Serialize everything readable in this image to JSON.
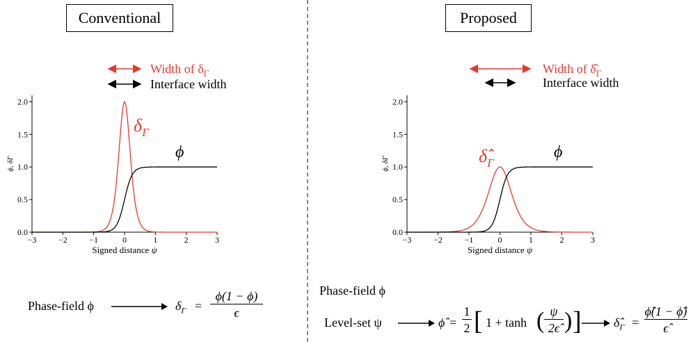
{
  "panels": {
    "conventional": {
      "title": "Conventional",
      "legend": {
        "red_label": "Width of δ",
        "red_sub": "Γ",
        "black_label": "Interface width"
      },
      "delta_label": {
        "main": "δ",
        "sub": "Γ"
      },
      "phi_label": "ϕ",
      "xlabel": "Signed distance",
      "xlabel_var": "ψ",
      "ylabel": "ϕ, δΓ",
      "formula": {
        "lhs": "Phase-field ϕ",
        "result_main": "δ",
        "result_sub": "Γ",
        "numerator": "ϕ(1 − ϕ)",
        "denominator": "ϵ"
      }
    },
    "proposed": {
      "title": "Proposed",
      "legend": {
        "red_label": "Width of δ̂",
        "red_sub": "Γ",
        "black_label": "Interface width"
      },
      "delta_label": {
        "main": "δ̂",
        "sub": "Γ"
      },
      "phi_label": "ϕ",
      "xlabel": "Signed distance",
      "xlabel_var": "ψ",
      "ylabel": "ϕ, δΓ",
      "formula_line1": "Phase-field ϕ",
      "formula_line2": {
        "lhs": "Level-set ψ",
        "phihat": "ϕ̂",
        "half_num": "1",
        "half_den": "2",
        "bracket_content": "1 + tanh",
        "frac_num": "ψ",
        "frac_den": "2ϵ̂",
        "result_main": "δ̂",
        "result_sub": "Γ",
        "numerator": "ϕ̂(1 − ϕ̂)",
        "denominator": "ϵ̂"
      }
    }
  },
  "colors": {
    "red": "#e8382c",
    "black": "#000000",
    "divider": "#888888"
  },
  "chart_data": [
    {
      "type": "line",
      "panel": "conventional",
      "xlabel": "Signed distance ψ",
      "ylabel": "ϕ, δΓ",
      "xlim": [
        -3,
        3
      ],
      "ylim": [
        0,
        2.1
      ],
      "xticks": [
        -3,
        -2,
        -1,
        0,
        1,
        2,
        3
      ],
      "yticks": [
        0.0,
        0.5,
        1.0,
        1.5,
        2.0
      ],
      "series": [
        {
          "name": "δΓ",
          "color": "#e8382c",
          "kind": "delta",
          "eps": 0.125
        },
        {
          "name": "ϕ",
          "color": "#000000",
          "kind": "phi",
          "eps": 0.125
        }
      ]
    },
    {
      "type": "line",
      "panel": "proposed",
      "xlabel": "Signed distance ψ",
      "ylabel": "ϕ, δΓ",
      "xlim": [
        -3,
        3
      ],
      "ylim": [
        0,
        2.1
      ],
      "xticks": [
        -3,
        -2,
        -1,
        0,
        1,
        2,
        3
      ],
      "yticks": [
        0.0,
        0.5,
        1.0,
        1.5,
        2.0
      ],
      "series": [
        {
          "name": "δ̂Γ",
          "color": "#e8382c",
          "kind": "delta",
          "eps": 0.25
        },
        {
          "name": "ϕ",
          "color": "#000000",
          "kind": "phi",
          "eps": 0.125
        }
      ]
    }
  ]
}
